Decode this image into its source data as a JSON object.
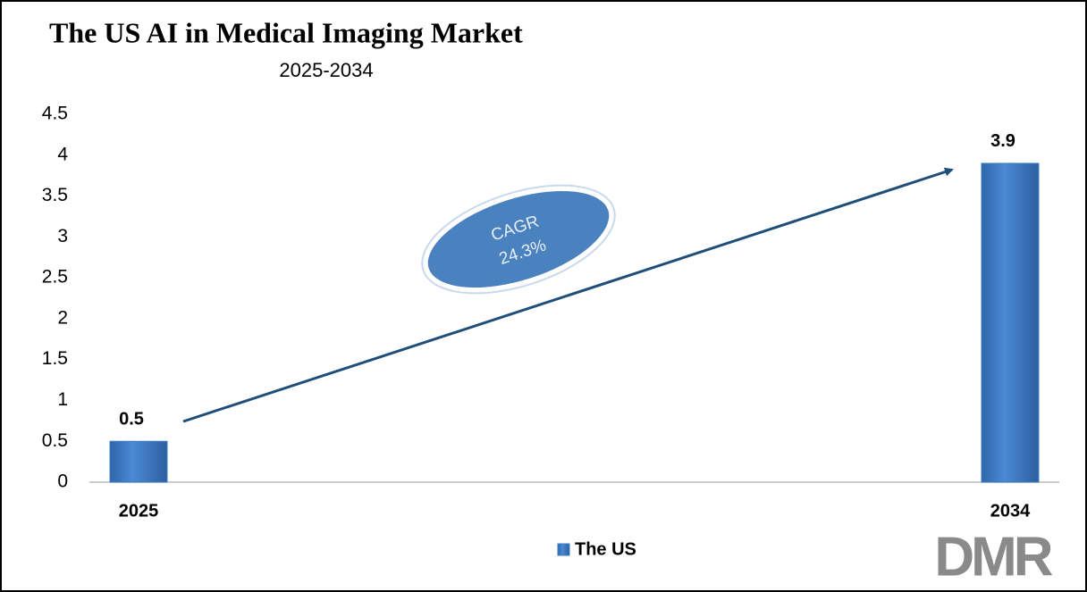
{
  "chart_data": {
    "type": "bar",
    "title": "The US AI in Medical Imaging Market",
    "subtitle": "2025-2034",
    "categories": [
      "2025",
      "2034"
    ],
    "series": [
      {
        "name": "The US",
        "color": "#3d7cc4",
        "values": [
          0.5,
          3.9
        ]
      }
    ],
    "ylim": [
      0,
      4.5
    ],
    "yticks": [
      0,
      0.5,
      1,
      1.5,
      2,
      2.5,
      3,
      3.5,
      4,
      4.5
    ],
    "grid": false,
    "legend": "bottom",
    "annotation": [
      "CAGR",
      "24.3%"
    ],
    "logo": "DMR"
  }
}
